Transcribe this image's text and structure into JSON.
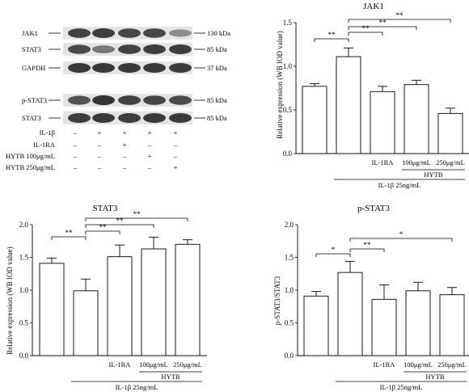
{
  "blot": {
    "rows": [
      {
        "protein": "JAK1",
        "kda": "130 kDa"
      },
      {
        "protein": "STAT3",
        "kda": "85 kDa"
      },
      {
        "protein": "GAPDH",
        "kda": "37 kDa"
      },
      {
        "protein": "p-STAT3",
        "kda": "85 kDa"
      },
      {
        "protein": "STAT3",
        "kda": "85 kDa"
      }
    ],
    "band_intensity": [
      [
        0.82,
        0.85,
        0.8,
        0.8,
        0.45
      ],
      [
        0.78,
        0.55,
        0.82,
        0.84,
        0.84
      ],
      [
        0.86,
        0.86,
        0.86,
        0.86,
        0.86
      ],
      [
        0.74,
        0.88,
        0.82,
        0.8,
        0.78
      ],
      [
        0.85,
        0.86,
        0.84,
        0.86,
        0.86
      ]
    ],
    "treatments": [
      {
        "label": "IL-1β",
        "signs": [
          "–",
          "+",
          "+",
          "+",
          "+"
        ]
      },
      {
        "label": "IL-1RA",
        "signs": [
          "–",
          "–",
          "+",
          "–",
          "–"
        ]
      },
      {
        "label": "HYTB 100μg/mL",
        "signs": [
          "–",
          "–",
          "–",
          "+",
          "–"
        ]
      },
      {
        "label": "HYTB 250μg/mL",
        "signs": [
          "–",
          "–",
          "–",
          "–",
          "+"
        ]
      }
    ]
  },
  "chart_data": [
    {
      "type": "bar",
      "id": "jak1",
      "title": "JAK1",
      "ylabel": "Relative expression (WB IOD value)",
      "ylim": [
        0,
        1.5
      ],
      "yticks": [
        "0.0",
        "0.5",
        "1.0",
        "1.5"
      ],
      "categories": [
        "",
        "",
        "IL-1RA",
        "100μg/mL",
        "250μg/mL"
      ],
      "values": [
        0.77,
        1.11,
        0.71,
        0.79,
        0.46
      ],
      "errors": [
        0.03,
        0.1,
        0.06,
        0.05,
        0.06
      ],
      "group_label": "HYTB",
      "condition_label": "IL-1β 25ng/mL",
      "significance": [
        {
          "from": 0,
          "to": 1,
          "label": "**"
        },
        {
          "from": 1,
          "to": 2,
          "label": "**"
        },
        {
          "from": 1,
          "to": 3,
          "label": "**"
        },
        {
          "from": 1,
          "to": 4,
          "label": "**"
        }
      ]
    },
    {
      "type": "bar",
      "id": "stat3",
      "title": "STAT3",
      "ylabel": "Relative expression (WB IOD value)",
      "ylim": [
        0,
        2.0
      ],
      "yticks": [
        "0.0",
        "0.5",
        "1.0",
        "1.5",
        "2.0"
      ],
      "categories": [
        "",
        "",
        "IL-1RA",
        "100μg/mL",
        "250μg/mL"
      ],
      "values": [
        1.41,
        0.99,
        1.51,
        1.63,
        1.7
      ],
      "errors": [
        0.08,
        0.18,
        0.18,
        0.18,
        0.07
      ],
      "group_label": "HYTB",
      "condition_label": "IL-1β 25ng/mL",
      "significance": [
        {
          "from": 0,
          "to": 1,
          "label": "**"
        },
        {
          "from": 1,
          "to": 2,
          "label": "**"
        },
        {
          "from": 1,
          "to": 3,
          "label": "**"
        },
        {
          "from": 1,
          "to": 4,
          "label": "**"
        }
      ]
    },
    {
      "type": "bar",
      "id": "pstat3",
      "title": "p-STAT3",
      "ylabel": "p-STAT3/STAT3",
      "ylim": [
        0,
        2.0
      ],
      "yticks": [
        "0.0",
        "0.5",
        "1.0",
        "1.5",
        "2.0"
      ],
      "categories": [
        "",
        "",
        "IL-1RA",
        "100μg/mL",
        "250μg/mL"
      ],
      "values": [
        0.91,
        1.27,
        0.86,
        0.99,
        0.93
      ],
      "errors": [
        0.07,
        0.17,
        0.22,
        0.13,
        0.11
      ],
      "group_label": "HYTB",
      "condition_label": "IL-1β 25ng/mL",
      "significance": [
        {
          "from": 0,
          "to": 1,
          "label": "*"
        },
        {
          "from": 1,
          "to": 2,
          "label": "**"
        },
        {
          "from": 1,
          "to": 4,
          "label": "*"
        }
      ]
    }
  ]
}
